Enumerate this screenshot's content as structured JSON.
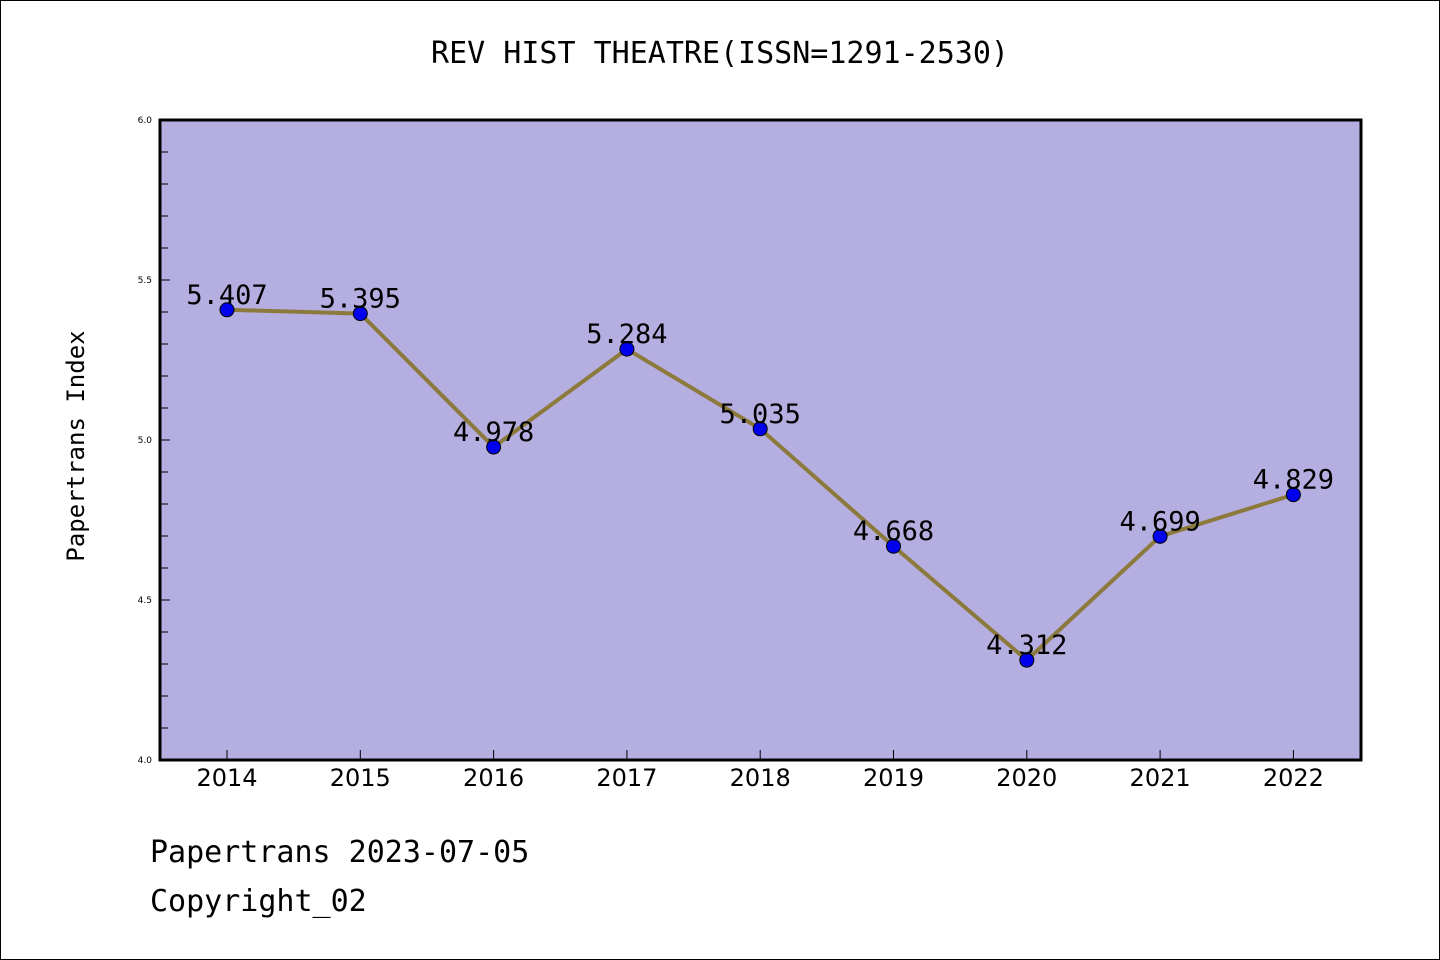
{
  "chart_data": {
    "type": "line",
    "title": "REV HIST THEATRE(ISSN=1291-2530)",
    "xlabel": "",
    "ylabel": "Papertrans Index",
    "categories": [
      "2014",
      "2015",
      "2016",
      "2017",
      "2018",
      "2019",
      "2020",
      "2021",
      "2022"
    ],
    "series": [
      {
        "values": [
          5.407,
          5.395,
          4.978,
          5.284,
          5.035,
          4.668,
          4.312,
          4.699,
          4.829
        ],
        "labels": [
          "5.407",
          "5.395",
          "4.978",
          "5.284",
          "5.035",
          "4.668",
          "4.312",
          "4.699",
          "4.829"
        ]
      }
    ],
    "ylim": [
      4.0,
      6.0
    ],
    "yticks": [
      "4.0",
      "4.5",
      "5.0",
      "5.5",
      "6.0"
    ],
    "grid": false,
    "colors": {
      "plot_background": "#b5aee1",
      "line": "#8c7a3c",
      "marker": "#0000ee"
    }
  },
  "footer": {
    "date_line": "Papertrans 2023-07-05",
    "copyright_line": "Copyright_02"
  }
}
